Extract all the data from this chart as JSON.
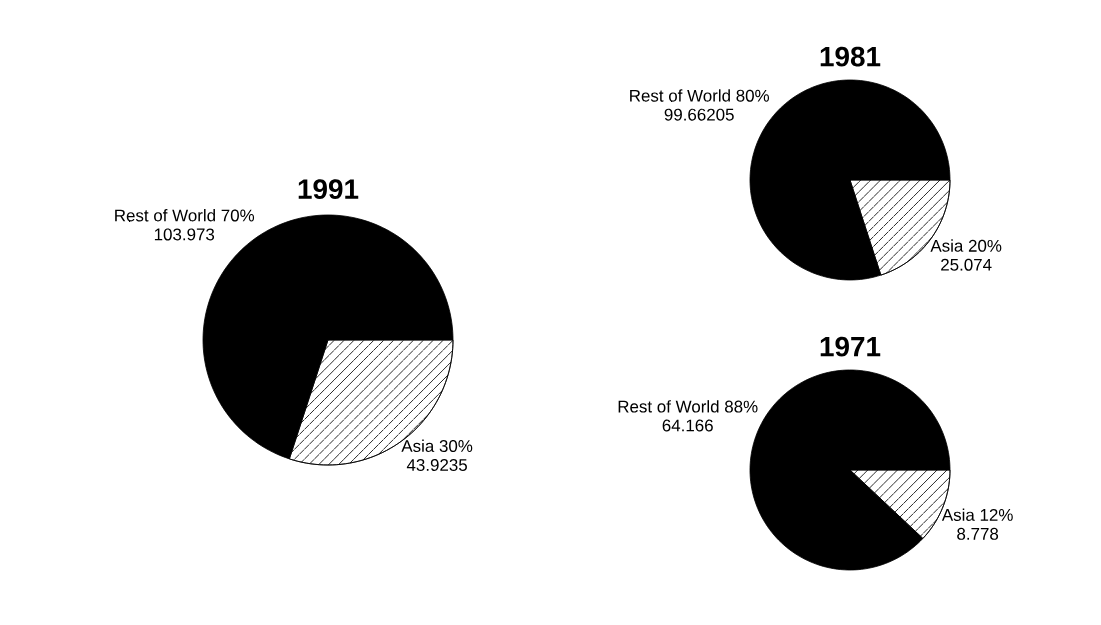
{
  "chart_data": [
    {
      "type": "pie",
      "title": "1991",
      "categories": [
        "Rest of World",
        "Asia"
      ],
      "values": [
        70,
        30
      ],
      "value_labels": [
        "70%",
        "30%"
      ],
      "annotations": [
        "103.973",
        "43.9235"
      ],
      "colors": [
        "#000000",
        "#ffffff"
      ]
    },
    {
      "type": "pie",
      "title": "1981",
      "categories": [
        "Rest of World",
        "Asia"
      ],
      "values": [
        80,
        20
      ],
      "value_labels": [
        "80%",
        "20%"
      ],
      "annotations": [
        "99.66205",
        "25.074"
      ],
      "colors": [
        "#000000",
        "#ffffff"
      ]
    },
    {
      "type": "pie",
      "title": "1971",
      "categories": [
        "Rest of World",
        "Asia"
      ],
      "values": [
        88,
        12
      ],
      "value_labels": [
        "88%",
        "12%"
      ],
      "annotations": [
        "64.166",
        "8.778"
      ],
      "colors": [
        "#000000",
        "#ffffff"
      ]
    }
  ]
}
